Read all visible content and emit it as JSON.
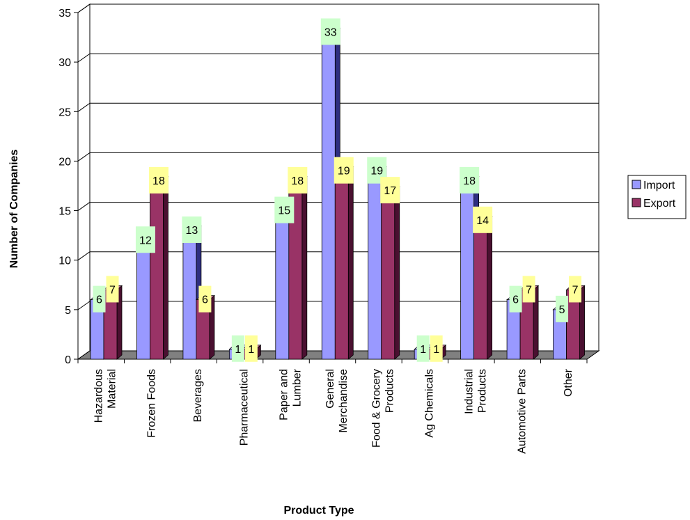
{
  "chart_data": {
    "type": "bar",
    "title": "",
    "xlabel": "Product Type",
    "ylabel": "Number of Companies",
    "ylim": [
      0,
      35
    ],
    "yticks": [
      0,
      5,
      10,
      15,
      20,
      25,
      30,
      35
    ],
    "grid": true,
    "legend_position": "right",
    "categories": [
      [
        "Hazardous",
        "Material"
      ],
      [
        "Frozen Foods"
      ],
      [
        "Beverages"
      ],
      [
        "Pharmaceutical"
      ],
      [
        "Paper and",
        "Lumber"
      ],
      [
        "General",
        "Merchandise"
      ],
      [
        "Food & Grocery",
        "Products"
      ],
      [
        "Ag Chemicals"
      ],
      [
        "Industrial",
        "Products"
      ],
      [
        "Automotive Parts"
      ],
      [
        "Other"
      ]
    ],
    "series": [
      {
        "name": "Import",
        "values": [
          6,
          12,
          13,
          1,
          15,
          33,
          19,
          1,
          18,
          6,
          5
        ]
      },
      {
        "name": "Export",
        "values": [
          7,
          18,
          6,
          1,
          18,
          19,
          17,
          1,
          14,
          7,
          7
        ]
      }
    ],
    "colors": {
      "import_front": "#9999ff",
      "import_top": "#c2c2ff",
      "import_side": "#2e2e80",
      "export_front": "#993366",
      "export_top": "#c4709a",
      "export_side": "#4a1030",
      "import_label_bg": "#ccffcc",
      "export_label_bg": "#ffff99",
      "floor": "#808080",
      "grid": "#000000"
    }
  }
}
